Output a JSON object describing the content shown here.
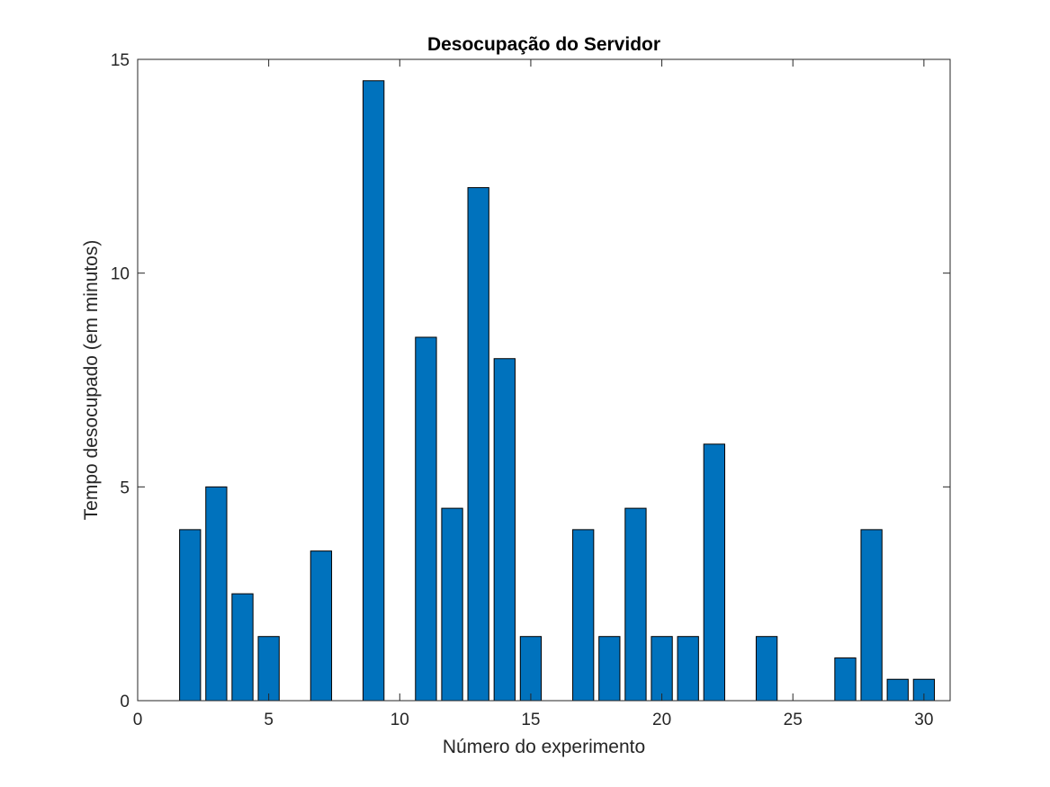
{
  "chart_data": {
    "type": "bar",
    "title": "Desocupação do Servidor",
    "xlabel": "Número do experimento",
    "ylabel": "Tempo desocupado (em minutos)",
    "categories": [
      1,
      2,
      3,
      4,
      5,
      6,
      7,
      8,
      9,
      10,
      11,
      12,
      13,
      14,
      15,
      16,
      17,
      18,
      19,
      20,
      21,
      22,
      23,
      24,
      25,
      26,
      27,
      28,
      29,
      30
    ],
    "values": [
      0,
      4,
      5,
      2.5,
      1.5,
      0,
      3.5,
      0,
      14.5,
      0,
      8.5,
      4.5,
      12,
      8,
      1.5,
      0,
      4,
      1.5,
      4.5,
      1.5,
      1.5,
      6,
      0,
      1.5,
      0,
      0,
      1,
      4,
      0.5,
      0.5
    ],
    "xlim": [
      0,
      31
    ],
    "ylim": [
      0,
      15
    ],
    "xticks": [
      0,
      5,
      10,
      15,
      20,
      25,
      30
    ],
    "yticks": [
      0,
      5,
      10,
      15
    ],
    "grid": false,
    "legend": "none",
    "bar_color": "#0072BD",
    "edge_color": "#000000"
  }
}
